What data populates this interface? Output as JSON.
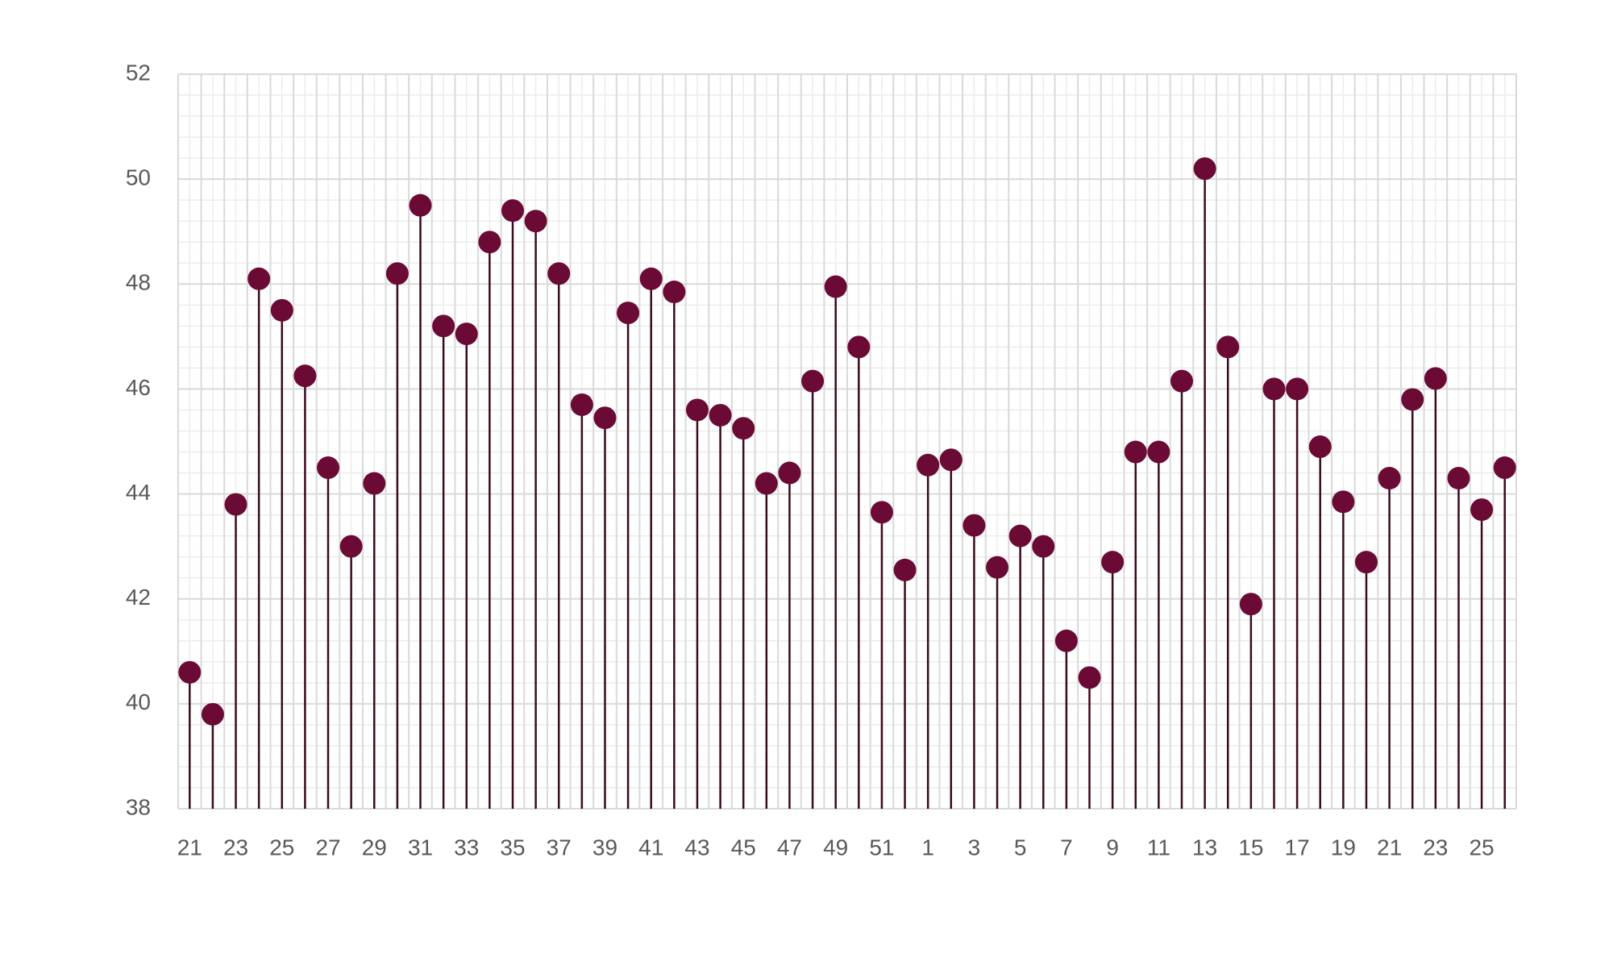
{
  "chart_data": {
    "type": "lollipop",
    "categories": [
      "21",
      null,
      "23",
      null,
      "25",
      null,
      "27",
      null,
      "29",
      null,
      "31",
      null,
      "33",
      null,
      "35",
      null,
      "37",
      null,
      "39",
      null,
      "41",
      null,
      "43",
      null,
      "45",
      null,
      "47",
      null,
      "49",
      null,
      "51",
      null,
      "1",
      null,
      "3",
      null,
      "5",
      null,
      "7",
      null,
      "9",
      null,
      "11",
      null,
      "13",
      null,
      "15",
      null,
      "17",
      null,
      "19",
      null,
      "21",
      null,
      "23",
      null,
      "25",
      null
    ],
    "values": [
      40.6,
      39.8,
      43.8,
      48.1,
      47.5,
      46.25,
      44.5,
      43.0,
      44.2,
      48.2,
      49.5,
      47.2,
      47.05,
      48.8,
      49.4,
      49.2,
      48.2,
      45.7,
      45.45,
      47.45,
      48.1,
      47.85,
      45.6,
      45.5,
      45.25,
      44.2,
      44.4,
      46.15,
      47.95,
      46.8,
      43.65,
      42.55,
      44.55,
      44.65,
      43.4,
      42.6,
      43.2,
      43.0,
      41.2,
      40.5,
      42.7,
      44.8,
      44.8,
      46.15,
      50.2,
      46.8,
      41.9,
      46.0,
      46.0,
      44.9,
      43.85,
      42.7,
      44.3,
      45.8,
      46.2,
      44.3,
      43.7,
      44.5
    ],
    "color": "#6b0a35",
    "stem_color": "#3a0a1e",
    "ylim": [
      38,
      52
    ],
    "yticks": [
      38,
      40,
      42,
      44,
      46,
      48,
      50,
      52
    ],
    "grid": true
  }
}
